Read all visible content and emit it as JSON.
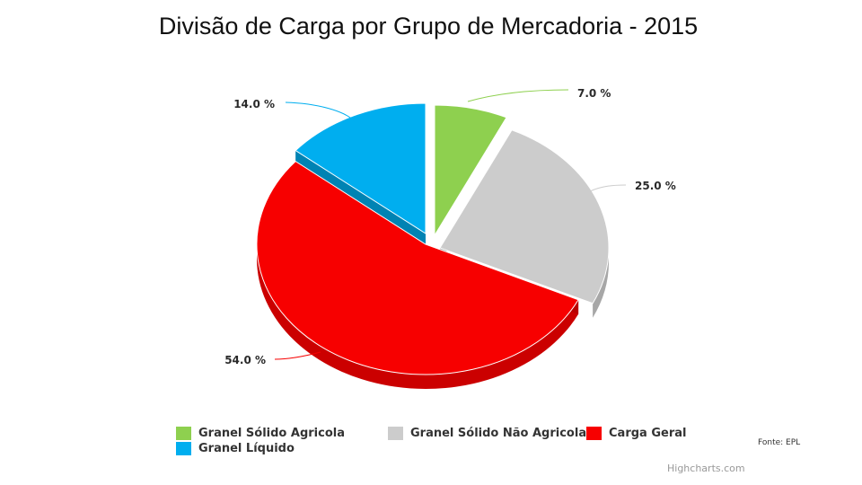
{
  "page": {
    "title": "Divisão de Carga por Grupo de Mercadoria - 2015"
  },
  "chart_data": {
    "type": "pie",
    "categories": [
      "Granel Sólido Agricola",
      "Granel Sólido Não Agricola",
      "Carga Geral",
      "Granel Líquido"
    ],
    "values": [
      7.0,
      25.0,
      54.0,
      14.0
    ],
    "labels": [
      "7.0 %",
      "25.0 %",
      "54.0 %",
      "14.0 %"
    ],
    "colors": [
      "#8ed04f",
      "#cccccc",
      "#f70000",
      "#00aeef"
    ],
    "legend_position": "bottom",
    "credits": "Highcharts.com",
    "source": "Fonte: EPL"
  },
  "legend": {
    "items": [
      {
        "label": "Granel Sólido Agricola",
        "color": "#8ed04f"
      },
      {
        "label": "Granel Sólido Não Agricola",
        "color": "#cccccc"
      },
      {
        "label": "Carga Geral",
        "color": "#f70000"
      },
      {
        "label": "Granel Líquido",
        "color": "#00aeef"
      }
    ]
  }
}
